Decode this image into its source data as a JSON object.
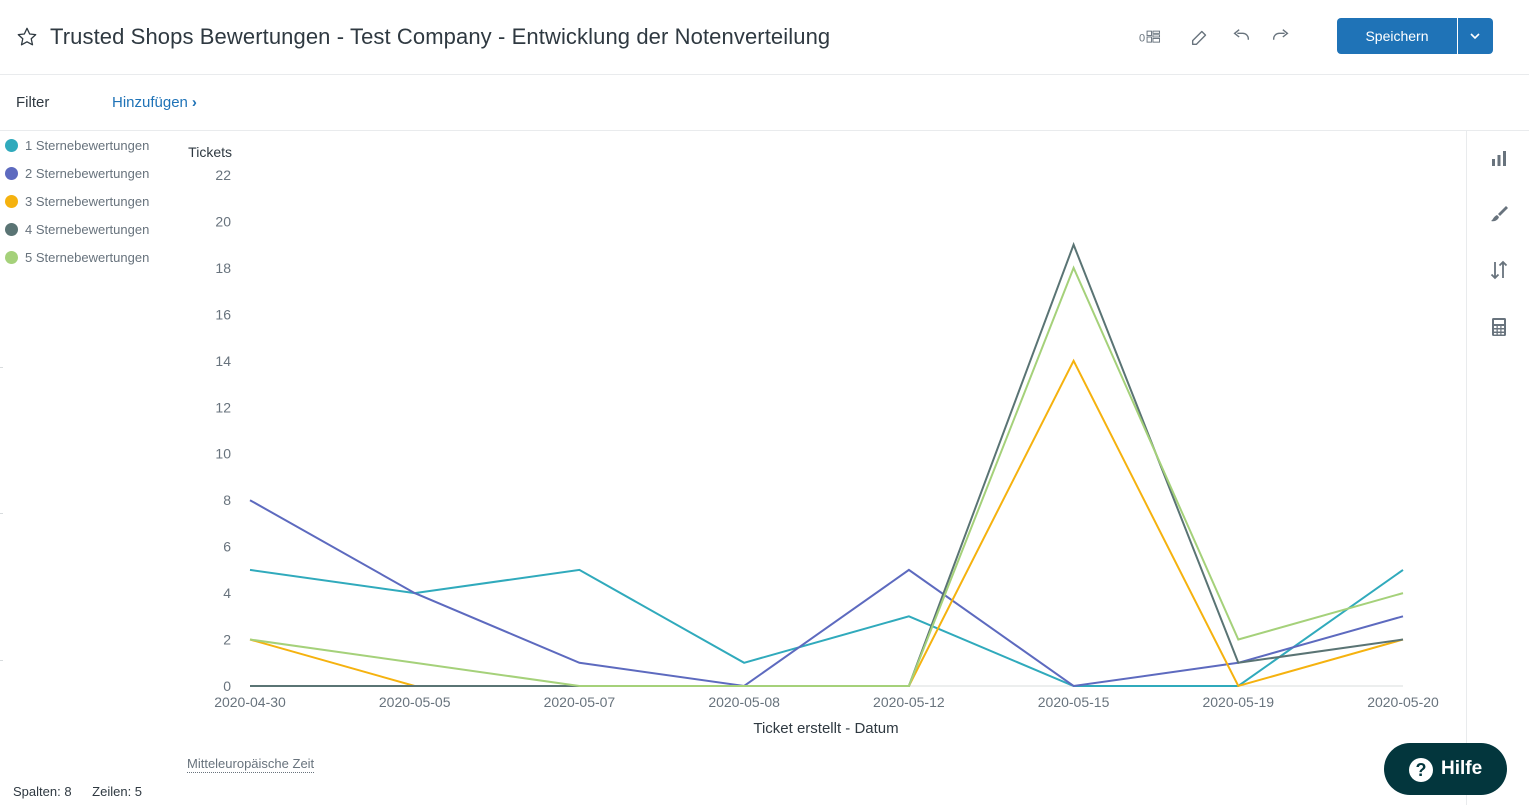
{
  "header": {
    "title": "Trusted Shops Bewertungen - Test Company - Entwicklung der Notenverteilung",
    "zero_badge": "0",
    "save_label": "Speichern",
    "icons": [
      "star-icon",
      "layout-grid-icon",
      "edit-icon",
      "undo-icon",
      "redo-icon",
      "chevron-down-icon"
    ]
  },
  "filter": {
    "label": "Filter",
    "add_label": "Hinzufügen"
  },
  "timezone": "Mitteleuropäische Zeit",
  "footer": {
    "columns": "Spalten: 8",
    "rows": "Zeilen: 5"
  },
  "side_panel": {
    "icons": [
      "bar-chart-icon",
      "paintbrush-icon",
      "sort-icon",
      "calculator-icon"
    ]
  },
  "help": {
    "label": "Hilfe"
  },
  "colors": {
    "accent": "#1f73b7",
    "help_bg": "#03363d"
  },
  "chart_data": {
    "type": "line",
    "ylabel": "Tickets",
    "xlabel": "Ticket erstellt - Datum",
    "categories": [
      "2020-04-30",
      "2020-05-05",
      "2020-05-07",
      "2020-05-08",
      "2020-05-12",
      "2020-05-15",
      "2020-05-19",
      "2020-05-20"
    ],
    "ylim": [
      0,
      22
    ],
    "yticks": [
      0,
      2,
      4,
      6,
      8,
      10,
      12,
      14,
      16,
      18,
      20,
      22
    ],
    "legend_position": "top-left",
    "grid": false,
    "series": [
      {
        "name": "1 Sternebewertungen",
        "color": "#30aabc",
        "values": [
          5,
          4,
          5,
          1,
          3,
          0,
          0,
          5
        ]
      },
      {
        "name": "2 Sternebewertungen",
        "color": "#5d6abf",
        "values": [
          8,
          4,
          1,
          0,
          5,
          0,
          1,
          3
        ]
      },
      {
        "name": "3 Sternebewertungen",
        "color": "#f5b20f",
        "values": [
          2,
          0,
          0,
          0,
          0,
          14,
          0,
          2
        ]
      },
      {
        "name": "4 Sternebewertungen",
        "color": "#5a7474",
        "values": [
          0,
          0,
          0,
          0,
          0,
          19,
          1,
          2
        ]
      },
      {
        "name": "5 Sternebewertungen",
        "color": "#a5d17a",
        "values": [
          2,
          1,
          0,
          0,
          0,
          18,
          2,
          4
        ]
      }
    ]
  }
}
